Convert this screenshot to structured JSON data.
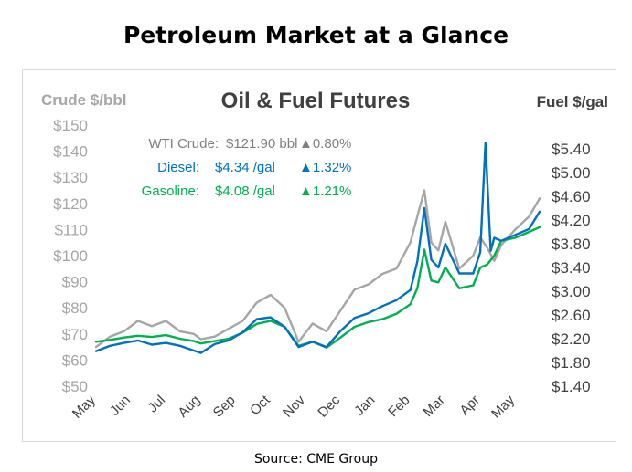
{
  "page": {
    "title": "Petroleum Market at a Glance",
    "source": "Source: CME Group"
  },
  "chart_data": {
    "type": "line",
    "title": "Oil & Fuel Futures",
    "ylabel_left": "Crude $/bbl",
    "ylabel_right": "Fuel $/gal",
    "ylim_left": [
      50,
      150
    ],
    "ylim_right": [
      1.4,
      5.8
    ],
    "y_ticks_left": [
      "$50",
      "$60",
      "$70",
      "$80",
      "$90",
      "$100",
      "$110",
      "$120",
      "$130",
      "$140",
      "$150"
    ],
    "y_ticks_right": [
      "$1.40",
      "$1.80",
      "$2.20",
      "$2.60",
      "$3.00",
      "$3.40",
      "$3.80",
      "$4.20",
      "$4.60",
      "$5.00",
      "$5.40"
    ],
    "x_ticks": [
      "May",
      "Jun",
      "Jul",
      "Aug",
      "Sep",
      "Oct",
      "Nov",
      "Dec",
      "Jan",
      "Feb",
      "Mar",
      "Apr",
      "May"
    ],
    "grid": false,
    "legend": [
      {
        "name": "WTI Crude:",
        "price": "$121.90 bbl",
        "change": "▲0.80%",
        "color": "#a6a6a6"
      },
      {
        "name": "Diesel:",
        "price": "$4.34 /gal",
        "change": "▲1.32%",
        "color": "#0070c0"
      },
      {
        "name": "Gasoline:",
        "price": "$4.08 /gal",
        "change": "▲1.21%",
        "color": "#00b050"
      }
    ],
    "series": [
      {
        "name": "WTI Crude",
        "axis": "left",
        "color": "#a6a6a6",
        "x": [
          0,
          0.4,
          0.8,
          1.2,
          1.6,
          2.0,
          2.4,
          2.8,
          3.0,
          3.4,
          3.8,
          4.2,
          4.6,
          5.0,
          5.4,
          5.8,
          6.2,
          6.6,
          7.0,
          7.4,
          7.8,
          8.2,
          8.6,
          9.0,
          9.2,
          9.4,
          9.6,
          9.8,
          10.0,
          10.4,
          10.8,
          11.0,
          11.2,
          11.4,
          11.6,
          12.0,
          12.4,
          12.7
        ],
        "y": [
          65,
          69,
          71,
          75,
          73,
          75,
          71,
          70,
          68,
          69,
          72,
          75,
          82,
          85,
          80,
          67,
          74,
          71,
          79,
          87,
          89,
          93,
          95,
          105,
          115,
          125,
          105,
          102,
          113,
          95,
          100,
          107,
          103,
          98,
          104,
          110,
          115,
          121.9
        ]
      },
      {
        "name": "Diesel",
        "axis": "right",
        "color": "#0070c0",
        "x": [
          0,
          0.4,
          0.8,
          1.2,
          1.6,
          2.0,
          2.4,
          2.8,
          3.0,
          3.4,
          3.8,
          4.2,
          4.6,
          5.0,
          5.4,
          5.8,
          6.2,
          6.6,
          7.0,
          7.4,
          7.8,
          8.2,
          8.6,
          9.0,
          9.2,
          9.4,
          9.6,
          9.8,
          10.0,
          10.4,
          10.8,
          11.0,
          11.15,
          11.3,
          11.4,
          11.6,
          12.0,
          12.4,
          12.7
        ],
        "y": [
          1.99,
          2.08,
          2.13,
          2.17,
          2.1,
          2.13,
          2.08,
          2.0,
          1.96,
          2.11,
          2.17,
          2.31,
          2.53,
          2.56,
          2.4,
          2.06,
          2.15,
          2.06,
          2.33,
          2.55,
          2.63,
          2.75,
          2.85,
          3.02,
          3.5,
          4.4,
          3.53,
          3.4,
          3.8,
          3.3,
          3.3,
          3.66,
          5.5,
          3.68,
          3.9,
          3.85,
          3.95,
          4.05,
          4.34
        ]
      },
      {
        "name": "Gasoline",
        "axis": "right",
        "color": "#00b050",
        "x": [
          0,
          0.4,
          0.8,
          1.2,
          1.6,
          2.0,
          2.4,
          2.8,
          3.0,
          3.4,
          3.8,
          4.2,
          4.6,
          5.0,
          5.4,
          5.8,
          6.2,
          6.6,
          7.0,
          7.4,
          7.8,
          8.2,
          8.6,
          9.0,
          9.2,
          9.4,
          9.6,
          9.8,
          10.0,
          10.4,
          10.8,
          11.0,
          11.2,
          11.4,
          11.6,
          12.0,
          12.4,
          12.7
        ],
        "y": [
          2.15,
          2.18,
          2.22,
          2.25,
          2.23,
          2.26,
          2.2,
          2.16,
          2.12,
          2.16,
          2.2,
          2.3,
          2.45,
          2.5,
          2.4,
          2.08,
          2.15,
          2.05,
          2.22,
          2.4,
          2.48,
          2.53,
          2.62,
          2.78,
          3.05,
          3.7,
          3.18,
          3.15,
          3.4,
          3.05,
          3.1,
          3.4,
          3.45,
          3.6,
          3.85,
          3.9,
          4.0,
          4.08
        ]
      }
    ]
  }
}
